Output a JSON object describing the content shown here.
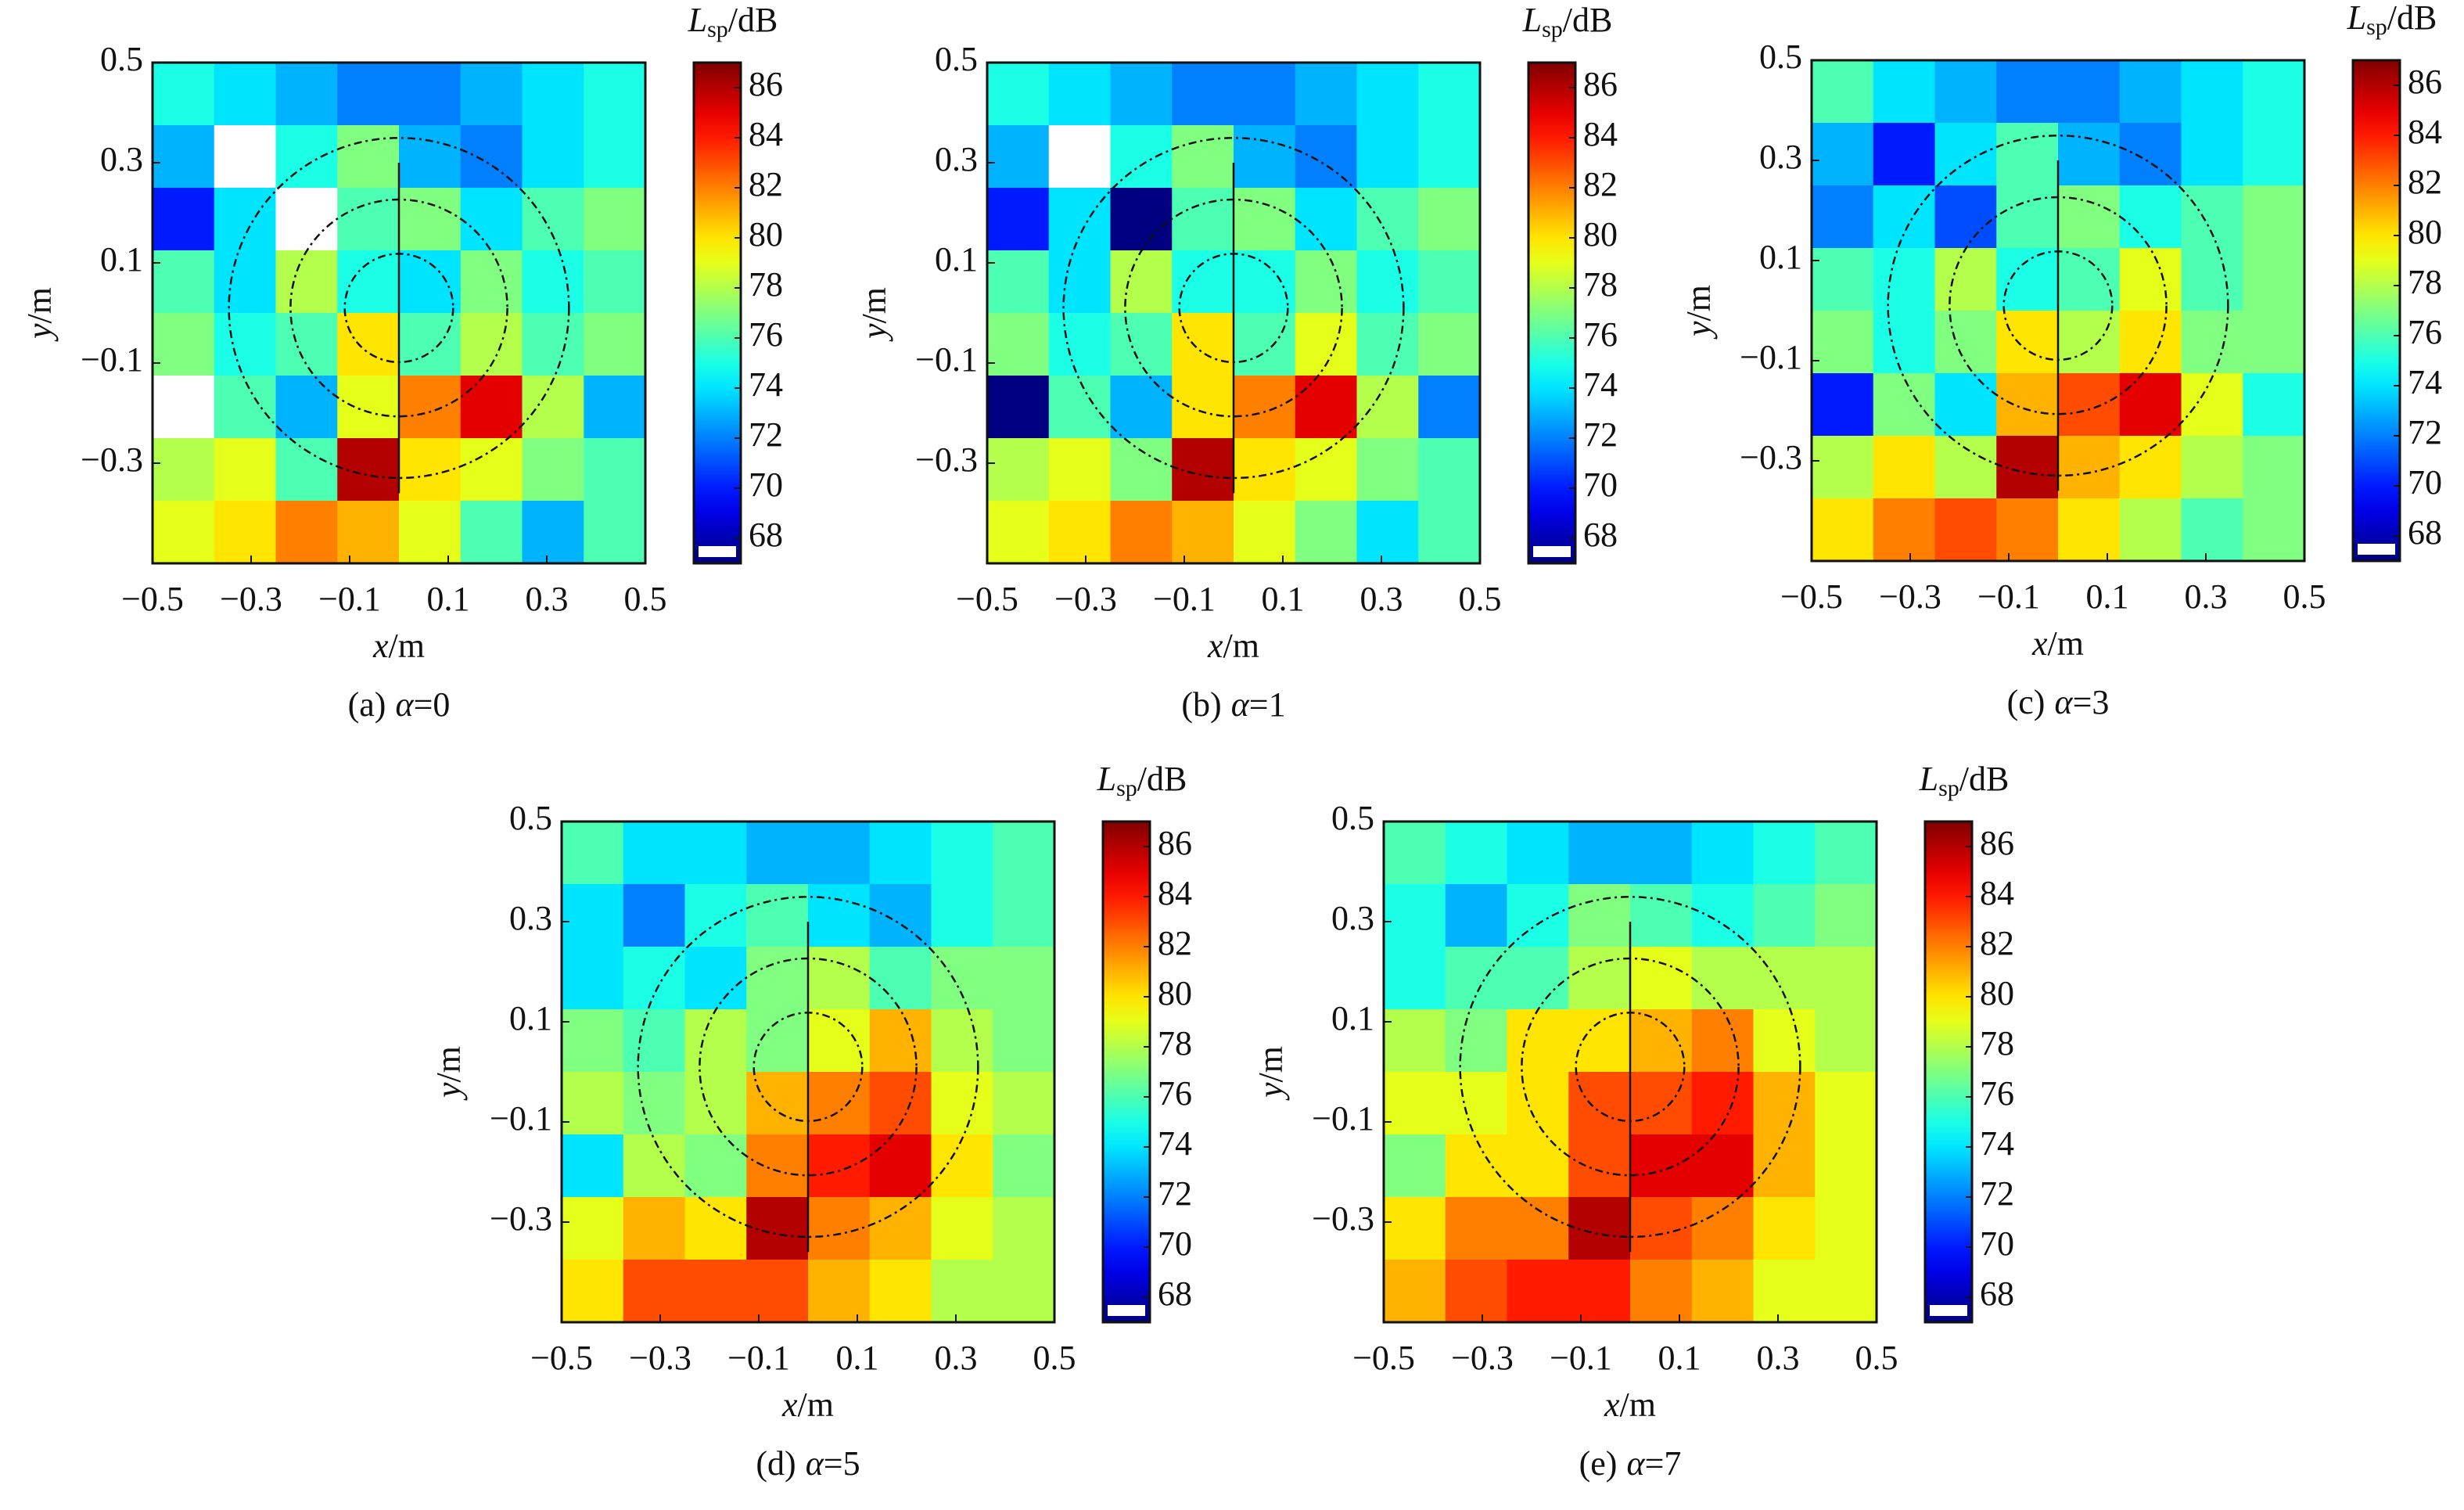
{
  "chart_data": [
    {
      "type": "heatmap",
      "caption": [
        "(a)",
        "α",
        "=0"
      ],
      "xlabel": [
        "x",
        "/m"
      ],
      "ylabel": [
        "y",
        "/m"
      ],
      "colorbar_label": [
        "L",
        "sp",
        "/dB"
      ],
      "colormap": "jet",
      "under_color": "#ffffff",
      "xlim": [
        -0.5,
        0.5
      ],
      "ylim": [
        -0.5,
        0.5
      ],
      "xticks": [
        {
          "value": -0.5,
          "label": "−0.5"
        },
        {
          "value": -0.3,
          "label": "−0.3"
        },
        {
          "value": -0.1,
          "label": "−0.1"
        },
        0.1,
        0.3,
        0.5
      ],
      "yticks": [
        0.5,
        0.3,
        0.1,
        {
          "value": -0.1,
          "label": "−0.1"
        },
        {
          "value": -0.3,
          "label": "−0.3"
        }
      ],
      "zlim": [
        67,
        87
      ],
      "zticks": [
        68,
        70,
        72,
        74,
        76,
        78,
        80,
        82,
        84,
        86
      ],
      "z": [
        [
          75,
          74,
          73,
          72,
          72,
          73,
          74,
          75
        ],
        [
          73,
          66,
          75,
          77,
          73,
          72,
          74,
          75
        ],
        [
          70,
          74,
          66,
          76,
          77,
          74,
          76,
          77
        ],
        [
          76,
          74,
          78,
          75,
          74,
          77,
          75,
          76
        ],
        [
          77,
          75,
          76,
          80,
          76,
          78,
          76,
          77
        ],
        [
          66,
          76,
          73,
          79,
          82,
          85,
          78,
          73
        ],
        [
          78,
          79,
          76,
          86,
          80,
          79,
          77,
          76
        ],
        [
          79,
          80,
          82,
          81,
          79,
          76,
          73,
          76
        ]
      ]
    },
    {
      "type": "heatmap",
      "caption": [
        "(b)",
        "α",
        "=1"
      ],
      "xlabel": [
        "x",
        "/m"
      ],
      "ylabel": [
        "y",
        "/m"
      ],
      "colorbar_label": [
        "L",
        "sp",
        "/dB"
      ],
      "colormap": "jet",
      "under_color": "#ffffff",
      "xlim": [
        -0.5,
        0.5
      ],
      "ylim": [
        -0.5,
        0.5
      ],
      "xticks": [
        {
          "value": -0.5,
          "label": "−0.5"
        },
        {
          "value": -0.3,
          "label": "−0.3"
        },
        {
          "value": -0.1,
          "label": "−0.1"
        },
        0.1,
        0.3,
        0.5
      ],
      "yticks": [
        0.5,
        0.3,
        0.1,
        {
          "value": -0.1,
          "label": "−0.1"
        },
        {
          "value": -0.3,
          "label": "−0.3"
        }
      ],
      "zlim": [
        67,
        87
      ],
      "zticks": [
        68,
        70,
        72,
        74,
        76,
        78,
        80,
        82,
        84,
        86
      ],
      "z": [
        [
          75,
          74,
          73,
          72,
          72,
          73,
          74,
          75
        ],
        [
          73,
          66,
          75,
          77,
          73,
          72,
          74,
          75
        ],
        [
          70,
          74,
          67,
          76,
          77,
          74,
          76,
          77
        ],
        [
          76,
          74,
          78,
          75,
          75,
          77,
          75,
          76
        ],
        [
          77,
          75,
          76,
          80,
          76,
          79,
          76,
          77
        ],
        [
          67,
          76,
          73,
          80,
          82,
          85,
          78,
          72
        ],
        [
          78,
          79,
          77,
          86,
          80,
          79,
          77,
          76
        ],
        [
          79,
          80,
          82,
          81,
          79,
          77,
          74,
          76
        ]
      ]
    },
    {
      "type": "heatmap",
      "caption": [
        "(c)",
        "α",
        "=3"
      ],
      "xlabel": [
        "x",
        "/m"
      ],
      "ylabel": [
        "y",
        "/m"
      ],
      "colorbar_label": [
        "L",
        "sp",
        "/dB"
      ],
      "colormap": "jet",
      "under_color": "#ffffff",
      "xlim": [
        -0.5,
        0.5
      ],
      "ylim": [
        -0.5,
        0.5
      ],
      "xticks": [
        {
          "value": -0.5,
          "label": "−0.5"
        },
        {
          "value": -0.3,
          "label": "−0.3"
        },
        {
          "value": -0.1,
          "label": "−0.1"
        },
        0.1,
        0.3,
        0.5
      ],
      "yticks": [
        0.5,
        0.3,
        0.1,
        {
          "value": -0.1,
          "label": "−0.1"
        },
        {
          "value": -0.3,
          "label": "−0.3"
        }
      ],
      "zlim": [
        67,
        87
      ],
      "zticks": [
        68,
        70,
        72,
        74,
        76,
        78,
        80,
        82,
        84,
        86
      ],
      "z": [
        [
          76,
          74,
          73,
          72,
          72,
          73,
          74,
          75
        ],
        [
          73,
          70,
          74,
          76,
          73,
          72,
          74,
          75
        ],
        [
          72,
          74,
          71,
          76,
          77,
          75,
          76,
          77
        ],
        [
          76,
          75,
          78,
          75,
          76,
          79,
          76,
          77
        ],
        [
          77,
          75,
          77,
          80,
          78,
          80,
          77,
          77
        ],
        [
          70,
          77,
          74,
          81,
          83,
          85,
          79,
          75
        ],
        [
          78,
          80,
          78,
          86,
          81,
          80,
          78,
          77
        ],
        [
          80,
          82,
          83,
          82,
          80,
          78,
          76,
          77
        ]
      ]
    },
    {
      "type": "heatmap",
      "caption": [
        "(d)",
        "α",
        "=5"
      ],
      "xlabel": [
        "x",
        "/m"
      ],
      "ylabel": [
        "y",
        "/m"
      ],
      "colorbar_label": [
        "L",
        "sp",
        "/dB"
      ],
      "colormap": "jet",
      "under_color": "#ffffff",
      "xlim": [
        -0.5,
        0.5
      ],
      "ylim": [
        -0.5,
        0.5
      ],
      "xticks": [
        {
          "value": -0.5,
          "label": "−0.5"
        },
        {
          "value": -0.3,
          "label": "−0.3"
        },
        {
          "value": -0.1,
          "label": "−0.1"
        },
        0.1,
        0.3,
        0.5
      ],
      "yticks": [
        0.5,
        0.3,
        0.1,
        {
          "value": -0.1,
          "label": "−0.1"
        },
        {
          "value": -0.3,
          "label": "−0.3"
        }
      ],
      "zlim": [
        67,
        87
      ],
      "zticks": [
        68,
        70,
        72,
        74,
        76,
        78,
        80,
        82,
        84,
        86
      ],
      "z": [
        [
          76,
          74,
          74,
          73,
          73,
          74,
          75,
          76
        ],
        [
          74,
          72,
          75,
          76,
          74,
          73,
          75,
          76
        ],
        [
          74,
          75,
          74,
          77,
          78,
          76,
          77,
          77
        ],
        [
          77,
          76,
          78,
          77,
          79,
          81,
          78,
          77
        ],
        [
          78,
          77,
          78,
          81,
          82,
          83,
          79,
          78
        ],
        [
          74,
          78,
          77,
          82,
          84,
          85,
          80,
          77
        ],
        [
          79,
          81,
          80,
          86,
          82,
          81,
          79,
          78
        ],
        [
          80,
          83,
          83,
          83,
          81,
          80,
          78,
          78
        ]
      ]
    },
    {
      "type": "heatmap",
      "caption": [
        "(e)",
        "α",
        "=7"
      ],
      "xlabel": [
        "x",
        "/m"
      ],
      "ylabel": [
        "y",
        "/m"
      ],
      "colorbar_label": [
        "L",
        "sp",
        "/dB"
      ],
      "colormap": "jet",
      "under_color": "#ffffff",
      "xlim": [
        -0.5,
        0.5
      ],
      "ylim": [
        -0.5,
        0.5
      ],
      "xticks": [
        {
          "value": -0.5,
          "label": "−0.5"
        },
        {
          "value": -0.3,
          "label": "−0.3"
        },
        {
          "value": -0.1,
          "label": "−0.1"
        },
        0.1,
        0.3,
        0.5
      ],
      "yticks": [
        0.5,
        0.3,
        0.1,
        {
          "value": -0.1,
          "label": "−0.1"
        },
        {
          "value": -0.3,
          "label": "−0.3"
        }
      ],
      "zlim": [
        67,
        87
      ],
      "zticks": [
        68,
        70,
        72,
        74,
        76,
        78,
        80,
        82,
        84,
        86
      ],
      "z": [
        [
          76,
          75,
          74,
          73,
          73,
          74,
          75,
          76
        ],
        [
          75,
          73,
          75,
          77,
          76,
          75,
          76,
          77
        ],
        [
          75,
          76,
          76,
          78,
          79,
          78,
          78,
          78
        ],
        [
          78,
          77,
          80,
          80,
          81,
          82,
          79,
          78
        ],
        [
          79,
          79,
          80,
          83,
          83,
          84,
          81,
          79
        ],
        [
          77,
          80,
          80,
          83,
          85,
          85,
          81,
          79
        ],
        [
          80,
          82,
          82,
          86,
          83,
          82,
          80,
          79
        ],
        [
          81,
          83,
          84,
          84,
          82,
          81,
          79,
          79
        ]
      ]
    }
  ]
}
